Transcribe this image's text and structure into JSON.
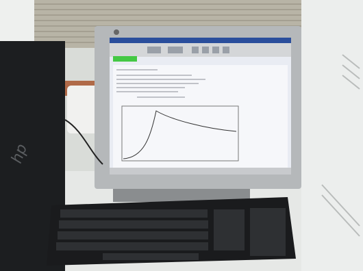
{
  "tower_logo": "hp"
}
